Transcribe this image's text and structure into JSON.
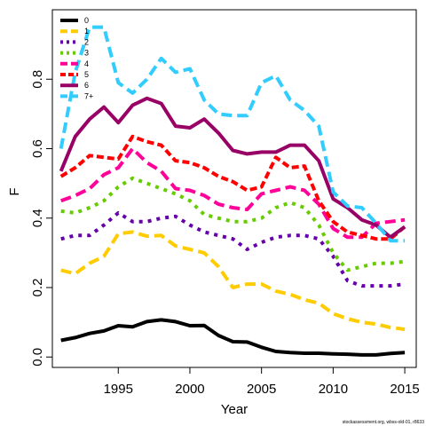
{
  "chart_data": {
    "type": "line",
    "title": "",
    "xlabel": "Year",
    "ylabel": "F",
    "xlim": [
      1990.4,
      2015.8
    ],
    "ylim": [
      -0.03,
      1.0
    ],
    "xticks": [
      1995,
      2000,
      2005,
      2010,
      2015
    ],
    "yticks": [
      0.0,
      0.2,
      0.4,
      0.6,
      0.8
    ],
    "ytick_labels": [
      "0.0",
      "0.2",
      "0.4",
      "0.6",
      "0.8"
    ],
    "grid": false,
    "legend_position": "top-left",
    "x": [
      1991,
      1992,
      1993,
      1994,
      1995,
      1996,
      1997,
      1998,
      1999,
      2000,
      2001,
      2002,
      2003,
      2004,
      2005,
      2006,
      2007,
      2008,
      2009,
      2010,
      2011,
      2012,
      2013,
      2014,
      2015
    ],
    "series": [
      {
        "name": "0",
        "color": "#000000",
        "dash": "solid",
        "values": [
          0.048,
          0.056,
          0.068,
          0.075,
          0.09,
          0.087,
          0.102,
          0.107,
          0.102,
          0.09,
          0.091,
          0.062,
          0.044,
          0.043,
          0.028,
          0.016,
          0.013,
          0.011,
          0.011,
          0.009,
          0.008,
          0.006,
          0.006,
          0.01,
          0.013
        ]
      },
      {
        "name": "1",
        "color": "#FFCC00",
        "dash": "long",
        "values": [
          0.25,
          0.24,
          0.27,
          0.29,
          0.355,
          0.36,
          0.348,
          0.35,
          0.32,
          0.31,
          0.3,
          0.26,
          0.2,
          0.21,
          0.21,
          0.19,
          0.18,
          0.165,
          0.155,
          0.125,
          0.11,
          0.1,
          0.095,
          0.085,
          0.08
        ]
      },
      {
        "name": "2",
        "color": "#6600AA",
        "dash": "dot",
        "values": [
          0.34,
          0.35,
          0.35,
          0.38,
          0.415,
          0.39,
          0.39,
          0.4,
          0.405,
          0.38,
          0.36,
          0.35,
          0.34,
          0.31,
          0.33,
          0.345,
          0.35,
          0.35,
          0.34,
          0.29,
          0.22,
          0.205,
          0.205,
          0.205,
          0.21
        ]
      },
      {
        "name": "3",
        "color": "#66CC00",
        "dash": "dot",
        "values": [
          0.42,
          0.415,
          0.43,
          0.45,
          0.49,
          0.515,
          0.5,
          0.485,
          0.47,
          0.45,
          0.41,
          0.4,
          0.39,
          0.39,
          0.4,
          0.43,
          0.445,
          0.43,
          0.38,
          0.3,
          0.25,
          0.26,
          0.27,
          0.27,
          0.275
        ]
      },
      {
        "name": "4",
        "color": "#FF0099",
        "dash": "long",
        "values": [
          0.45,
          0.465,
          0.485,
          0.525,
          0.545,
          0.6,
          0.56,
          0.535,
          0.485,
          0.48,
          0.465,
          0.44,
          0.43,
          0.425,
          0.47,
          0.48,
          0.49,
          0.48,
          0.44,
          0.37,
          0.345,
          0.345,
          0.385,
          0.39,
          0.395
        ]
      },
      {
        "name": "5",
        "color": "#FF0000",
        "dash": "short",
        "values": [
          0.52,
          0.545,
          0.58,
          0.575,
          0.57,
          0.635,
          0.62,
          0.61,
          0.565,
          0.56,
          0.545,
          0.52,
          0.505,
          0.48,
          0.49,
          0.575,
          0.545,
          0.55,
          0.45,
          0.39,
          0.36,
          0.35,
          0.34,
          0.34,
          0.375
        ]
      },
      {
        "name": "6",
        "color": "#990066",
        "dash": "solid",
        "values": [
          0.535,
          0.635,
          0.685,
          0.72,
          0.675,
          0.725,
          0.745,
          0.73,
          0.665,
          0.66,
          0.685,
          0.645,
          0.595,
          0.585,
          0.59,
          0.59,
          0.61,
          0.61,
          0.565,
          0.455,
          0.43,
          0.395,
          0.38,
          0.345,
          0.375
        ]
      },
      {
        "name": "7+",
        "color": "#33CCFF",
        "dash": "long",
        "values": [
          0.6,
          0.82,
          0.95,
          0.95,
          0.79,
          0.76,
          0.8,
          0.86,
          0.82,
          0.83,
          0.74,
          0.7,
          0.695,
          0.695,
          0.79,
          0.81,
          0.74,
          0.71,
          0.665,
          0.475,
          0.435,
          0.43,
          0.385,
          0.335,
          0.335
        ]
      }
    ],
    "annotations": [
      "stockassessment.org, wbss-old-01, r8633"
    ]
  }
}
